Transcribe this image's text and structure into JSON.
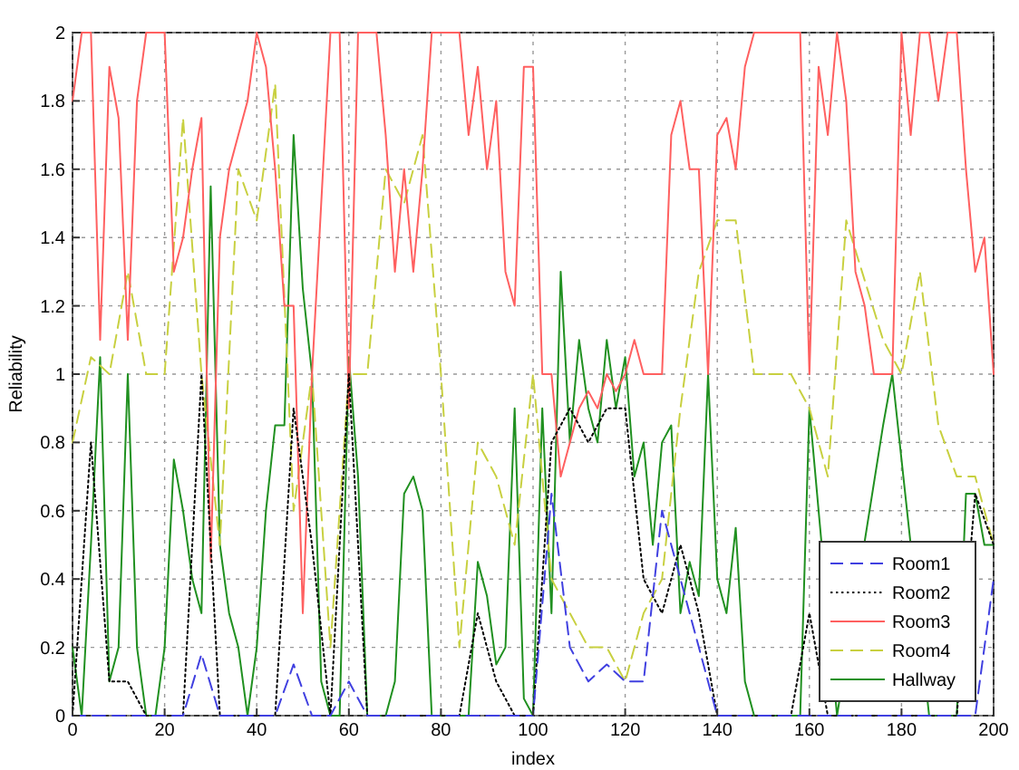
{
  "chart_data": {
    "type": "line",
    "xlabel": "index",
    "ylabel": "Reliability",
    "xlim": [
      0,
      200
    ],
    "ylim": [
      0,
      2
    ],
    "xticks": [
      0,
      20,
      40,
      60,
      80,
      100,
      120,
      140,
      160,
      180,
      200
    ],
    "yticks": [
      0,
      0.2,
      0.4,
      0.6,
      0.8,
      1,
      1.2,
      1.4,
      1.6,
      1.8,
      2
    ],
    "grid": true,
    "legend": "bottom right",
    "marker": "none",
    "series": [
      {
        "name": "Room1",
        "color": "#4040e0",
        "line_style": "dashed",
        "x": [
          0,
          4,
          8,
          12,
          16,
          20,
          24,
          28,
          32,
          36,
          40,
          44,
          48,
          52,
          56,
          60,
          64,
          68,
          72,
          76,
          80,
          84,
          88,
          92,
          96,
          100,
          104,
          108,
          112,
          116,
          120,
          124,
          128,
          132,
          136,
          140,
          144,
          148,
          152,
          156,
          160,
          164,
          168,
          172,
          176,
          180,
          184,
          188,
          192,
          196,
          200
        ],
        "values": [
          0,
          0,
          0,
          0,
          0,
          0,
          0,
          0.18,
          0,
          0,
          0,
          0,
          0.15,
          0,
          0,
          0.1,
          0,
          0,
          0,
          0,
          0,
          0,
          0,
          0,
          0,
          0,
          0.65,
          0.2,
          0.1,
          0.15,
          0.1,
          0.1,
          0.6,
          0.4,
          0.2,
          0,
          0,
          0,
          0,
          0,
          0,
          0,
          0,
          0,
          null,
          null,
          0,
          0,
          0,
          0,
          0.4
        ]
      },
      {
        "name": "Room2",
        "color": "#000000",
        "line_style": "dotted",
        "x": [
          0,
          4,
          8,
          12,
          16,
          20,
          24,
          28,
          32,
          36,
          40,
          44,
          48,
          52,
          56,
          60,
          64,
          68,
          72,
          76,
          80,
          84,
          88,
          92,
          96,
          100,
          104,
          108,
          112,
          116,
          120,
          124,
          128,
          132,
          136,
          140,
          144,
          148,
          152,
          156,
          160,
          164,
          168,
          172,
          176,
          180,
          184,
          188,
          192,
          196,
          200
        ],
        "values": [
          0,
          0.8,
          0.1,
          0.1,
          0,
          0,
          0,
          1,
          0,
          0,
          0,
          0,
          0.9,
          0.5,
          0,
          1,
          0,
          0,
          0,
          0,
          0,
          0,
          0.3,
          0.1,
          0,
          0,
          0.8,
          0.9,
          0.8,
          0.9,
          0.9,
          0.4,
          0.3,
          0.5,
          0.3,
          0,
          0,
          0,
          0,
          0,
          0.3,
          0,
          0,
          0,
          null,
          null,
          0,
          0,
          0,
          0.65,
          0.5
        ]
      },
      {
        "name": "Room3",
        "color": "#ff6060",
        "line_style": "solid",
        "x": [
          0,
          2,
          4,
          6,
          8,
          10,
          12,
          14,
          16,
          18,
          20,
          22,
          24,
          26,
          28,
          30,
          32,
          34,
          36,
          38,
          40,
          42,
          44,
          46,
          48,
          50,
          52,
          54,
          56,
          58,
          60,
          62,
          64,
          66,
          68,
          70,
          72,
          74,
          76,
          78,
          80,
          82,
          84,
          86,
          88,
          90,
          92,
          94,
          96,
          98,
          100,
          102,
          104,
          106,
          108,
          110,
          112,
          114,
          116,
          118,
          120,
          122,
          124,
          126,
          128,
          130,
          132,
          134,
          136,
          138,
          140,
          142,
          144,
          146,
          148,
          150,
          152,
          154,
          156,
          158,
          160,
          162,
          164,
          166,
          168,
          170,
          172,
          174,
          176,
          178,
          180,
          182,
          184,
          186,
          188,
          190,
          192,
          194,
          196,
          198,
          200
        ],
        "values": [
          1.8,
          2,
          2,
          1.1,
          1.9,
          1.75,
          1.1,
          1.8,
          2,
          2,
          2,
          1.3,
          1.4,
          1.6,
          1.75,
          0.45,
          1.4,
          1.6,
          1.7,
          1.8,
          2,
          1.9,
          1.6,
          1.2,
          1.2,
          0.3,
          1,
          1.5,
          2,
          2,
          0.9,
          2,
          2,
          2,
          1.7,
          1.3,
          1.6,
          1.3,
          1.6,
          2,
          2,
          2,
          2,
          1.7,
          1.9,
          1.6,
          1.8,
          1.3,
          1.2,
          1.9,
          1.9,
          1,
          1,
          0.7,
          0.8,
          0.9,
          0.95,
          0.9,
          1,
          0.95,
          1,
          1.1,
          1,
          1,
          1,
          1.7,
          1.8,
          1.6,
          1.6,
          1,
          1.7,
          1.75,
          1.6,
          1.9,
          2,
          2,
          2,
          2,
          2,
          2,
          1,
          1.9,
          1.7,
          2,
          1.8,
          1.3,
          1.2,
          1,
          1,
          1,
          2,
          1.7,
          2,
          2,
          1.8,
          2,
          2,
          1.6,
          1.3,
          1.4,
          1
        ]
      },
      {
        "name": "Room4",
        "color": "#c8d040",
        "line_style": "dashed",
        "x": [
          0,
          4,
          8,
          12,
          16,
          20,
          24,
          28,
          32,
          36,
          40,
          44,
          48,
          52,
          56,
          60,
          64,
          68,
          72,
          76,
          80,
          84,
          88,
          92,
          96,
          100,
          104,
          108,
          112,
          116,
          120,
          124,
          128,
          132,
          136,
          140,
          144,
          148,
          152,
          156,
          160,
          164,
          168,
          172,
          176,
          180,
          184,
          188,
          192,
          196,
          200
        ],
        "values": [
          0.8,
          1.05,
          1,
          1.3,
          1,
          1,
          1.75,
          1,
          0.5,
          1.6,
          1.45,
          1.85,
          0.6,
          1,
          0.2,
          1,
          1,
          1.6,
          1.5,
          1.7,
          1,
          0.2,
          0.8,
          0.7,
          0.5,
          1,
          0.4,
          0.3,
          0.2,
          0.2,
          0.1,
          0.3,
          0.4,
          0.9,
          1.3,
          1.45,
          1.45,
          1,
          1,
          1,
          0.9,
          0.7,
          1.45,
          null,
          1.1,
          1,
          1.3,
          0.85,
          0.7,
          0.7,
          0.5
        ]
      },
      {
        "name": "Hallway",
        "color": "#209020",
        "line_style": "solid",
        "x": [
          0,
          2,
          4,
          6,
          8,
          10,
          12,
          14,
          16,
          18,
          20,
          22,
          24,
          26,
          28,
          30,
          32,
          34,
          36,
          38,
          40,
          42,
          44,
          46,
          48,
          50,
          52,
          54,
          56,
          58,
          60,
          62,
          64,
          66,
          68,
          70,
          72,
          74,
          76,
          78,
          80,
          82,
          84,
          86,
          88,
          90,
          92,
          94,
          96,
          98,
          100,
          102,
          104,
          106,
          108,
          110,
          112,
          114,
          116,
          118,
          120,
          122,
          124,
          126,
          128,
          130,
          132,
          134,
          136,
          138,
          140,
          142,
          144,
          146,
          148,
          150,
          152,
          154,
          156,
          158,
          160,
          162,
          164,
          166,
          168,
          170,
          172,
          174,
          176,
          178,
          180,
          182,
          184,
          186,
          188,
          190,
          192,
          194,
          196,
          198,
          200
        ],
        "values": [
          0.2,
          0,
          0.5,
          1.05,
          0.1,
          0.2,
          1,
          0.2,
          0,
          0,
          0.2,
          0.75,
          0.6,
          0.4,
          0.3,
          1.55,
          0.5,
          0.3,
          0.2,
          0,
          0.2,
          0.6,
          0.85,
          0.85,
          1.7,
          1.25,
          1,
          0.1,
          0,
          0,
          1.05,
          0.7,
          0,
          0,
          0,
          0.1,
          0.65,
          0.7,
          0.6,
          0,
          0,
          0,
          0,
          0,
          0.45,
          0.35,
          0.15,
          0.2,
          0.9,
          0.05,
          0,
          0.9,
          0.3,
          1.3,
          0.8,
          1.1,
          0.9,
          0.8,
          1.1,
          0.9,
          1.05,
          0.7,
          0.8,
          0.5,
          0.8,
          0.85,
          0.3,
          0.45,
          0.35,
          1,
          0.4,
          0.3,
          0.55,
          0.1,
          0,
          0,
          0,
          0,
          0,
          0,
          0.9,
          null,
          null,
          0,
          null,
          null,
          null,
          null,
          0.85,
          1,
          null,
          null,
          null,
          0,
          0,
          0,
          0,
          0.65,
          0.65,
          0.5,
          0.5
        ]
      }
    ]
  }
}
